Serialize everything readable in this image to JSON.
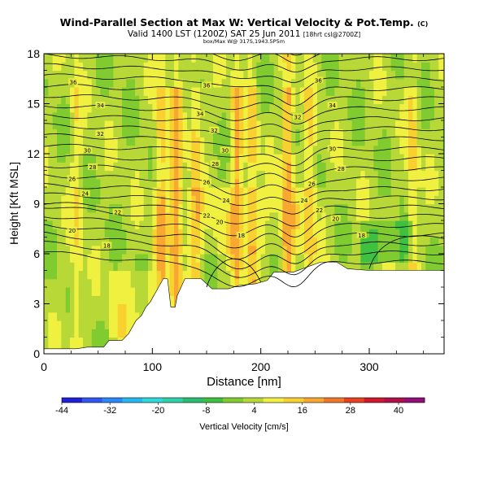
{
  "header": {
    "title": "Wind-Parallel Section at Max W: Vertical Velocity & Pot.Temp.",
    "title_mark": "(C)",
    "subtitle": "Valid 1400 LST (1200Z) SAT 25 Jun 2011",
    "subtitle_note": "[18hrt csl@2700Z]",
    "detail": "box/Max W@ 317S,1943.5P5m"
  },
  "chart_data": {
    "type": "heatmap",
    "xlabel": "Distance [nm]",
    "ylabel": "Height [Kft MSL]",
    "xlim": [
      0,
      369
    ],
    "ylim": [
      0,
      18
    ],
    "xticks": [
      "0",
      "100",
      "200",
      "300"
    ],
    "xtick_values": [
      0,
      100,
      200,
      300
    ],
    "yticks": [
      "0",
      "3",
      "6",
      "9",
      "12",
      "15",
      "18"
    ],
    "ytick_values": [
      0,
      3,
      6,
      9,
      12,
      15,
      18
    ],
    "colorbar": {
      "label": "Vertical Velocity [cm/s]",
      "tick_labels": [
        "-44",
        "-32",
        "-20",
        "-8",
        "4",
        "16",
        "28",
        "40"
      ],
      "colors": [
        "#2020d8",
        "#3058f0",
        "#2a88f8",
        "#28b8f0",
        "#30d8d8",
        "#30d0a8",
        "#28c070",
        "#40c040",
        "#80cc30",
        "#b8d838",
        "#f0f040",
        "#f8d030",
        "#f8a830",
        "#f07828",
        "#e84020",
        "#d01830",
        "#b01048",
        "#901078"
      ]
    },
    "theta_contour_labels": [
      {
        "x": 27,
        "y": 16.3,
        "text": "36"
      },
      {
        "x": 52,
        "y": 14.9,
        "text": "34"
      },
      {
        "x": 52,
        "y": 13.2,
        "text": "32"
      },
      {
        "x": 40,
        "y": 12.2,
        "text": "30"
      },
      {
        "x": 45,
        "y": 11.2,
        "text": "28"
      },
      {
        "x": 26,
        "y": 10.5,
        "text": "26"
      },
      {
        "x": 38,
        "y": 9.6,
        "text": "24"
      },
      {
        "x": 68,
        "y": 8.5,
        "text": "22"
      },
      {
        "x": 26,
        "y": 7.4,
        "text": "20"
      },
      {
        "x": 58,
        "y": 6.5,
        "text": "18"
      },
      {
        "x": 150,
        "y": 16.1,
        "text": "36"
      },
      {
        "x": 144,
        "y": 14.4,
        "text": "34"
      },
      {
        "x": 157,
        "y": 13.4,
        "text": "32"
      },
      {
        "x": 167,
        "y": 12.2,
        "text": "30"
      },
      {
        "x": 158,
        "y": 11.4,
        "text": "28"
      },
      {
        "x": 150,
        "y": 10.3,
        "text": "26"
      },
      {
        "x": 168,
        "y": 9.2,
        "text": "24"
      },
      {
        "x": 150,
        "y": 8.3,
        "text": "22"
      },
      {
        "x": 162,
        "y": 7.9,
        "text": "20"
      },
      {
        "x": 182,
        "y": 7.1,
        "text": "18"
      },
      {
        "x": 253,
        "y": 16.4,
        "text": "36"
      },
      {
        "x": 266,
        "y": 14.9,
        "text": "34"
      },
      {
        "x": 234,
        "y": 14.2,
        "text": "32"
      },
      {
        "x": 266,
        "y": 12.3,
        "text": "30"
      },
      {
        "x": 274,
        "y": 11.1,
        "text": "28"
      },
      {
        "x": 247,
        "y": 10.2,
        "text": "26"
      },
      {
        "x": 240,
        "y": 9.2,
        "text": "24"
      },
      {
        "x": 254,
        "y": 8.6,
        "text": "22"
      },
      {
        "x": 269,
        "y": 8.1,
        "text": "20"
      },
      {
        "x": 293,
        "y": 7.1,
        "text": "18"
      }
    ]
  }
}
